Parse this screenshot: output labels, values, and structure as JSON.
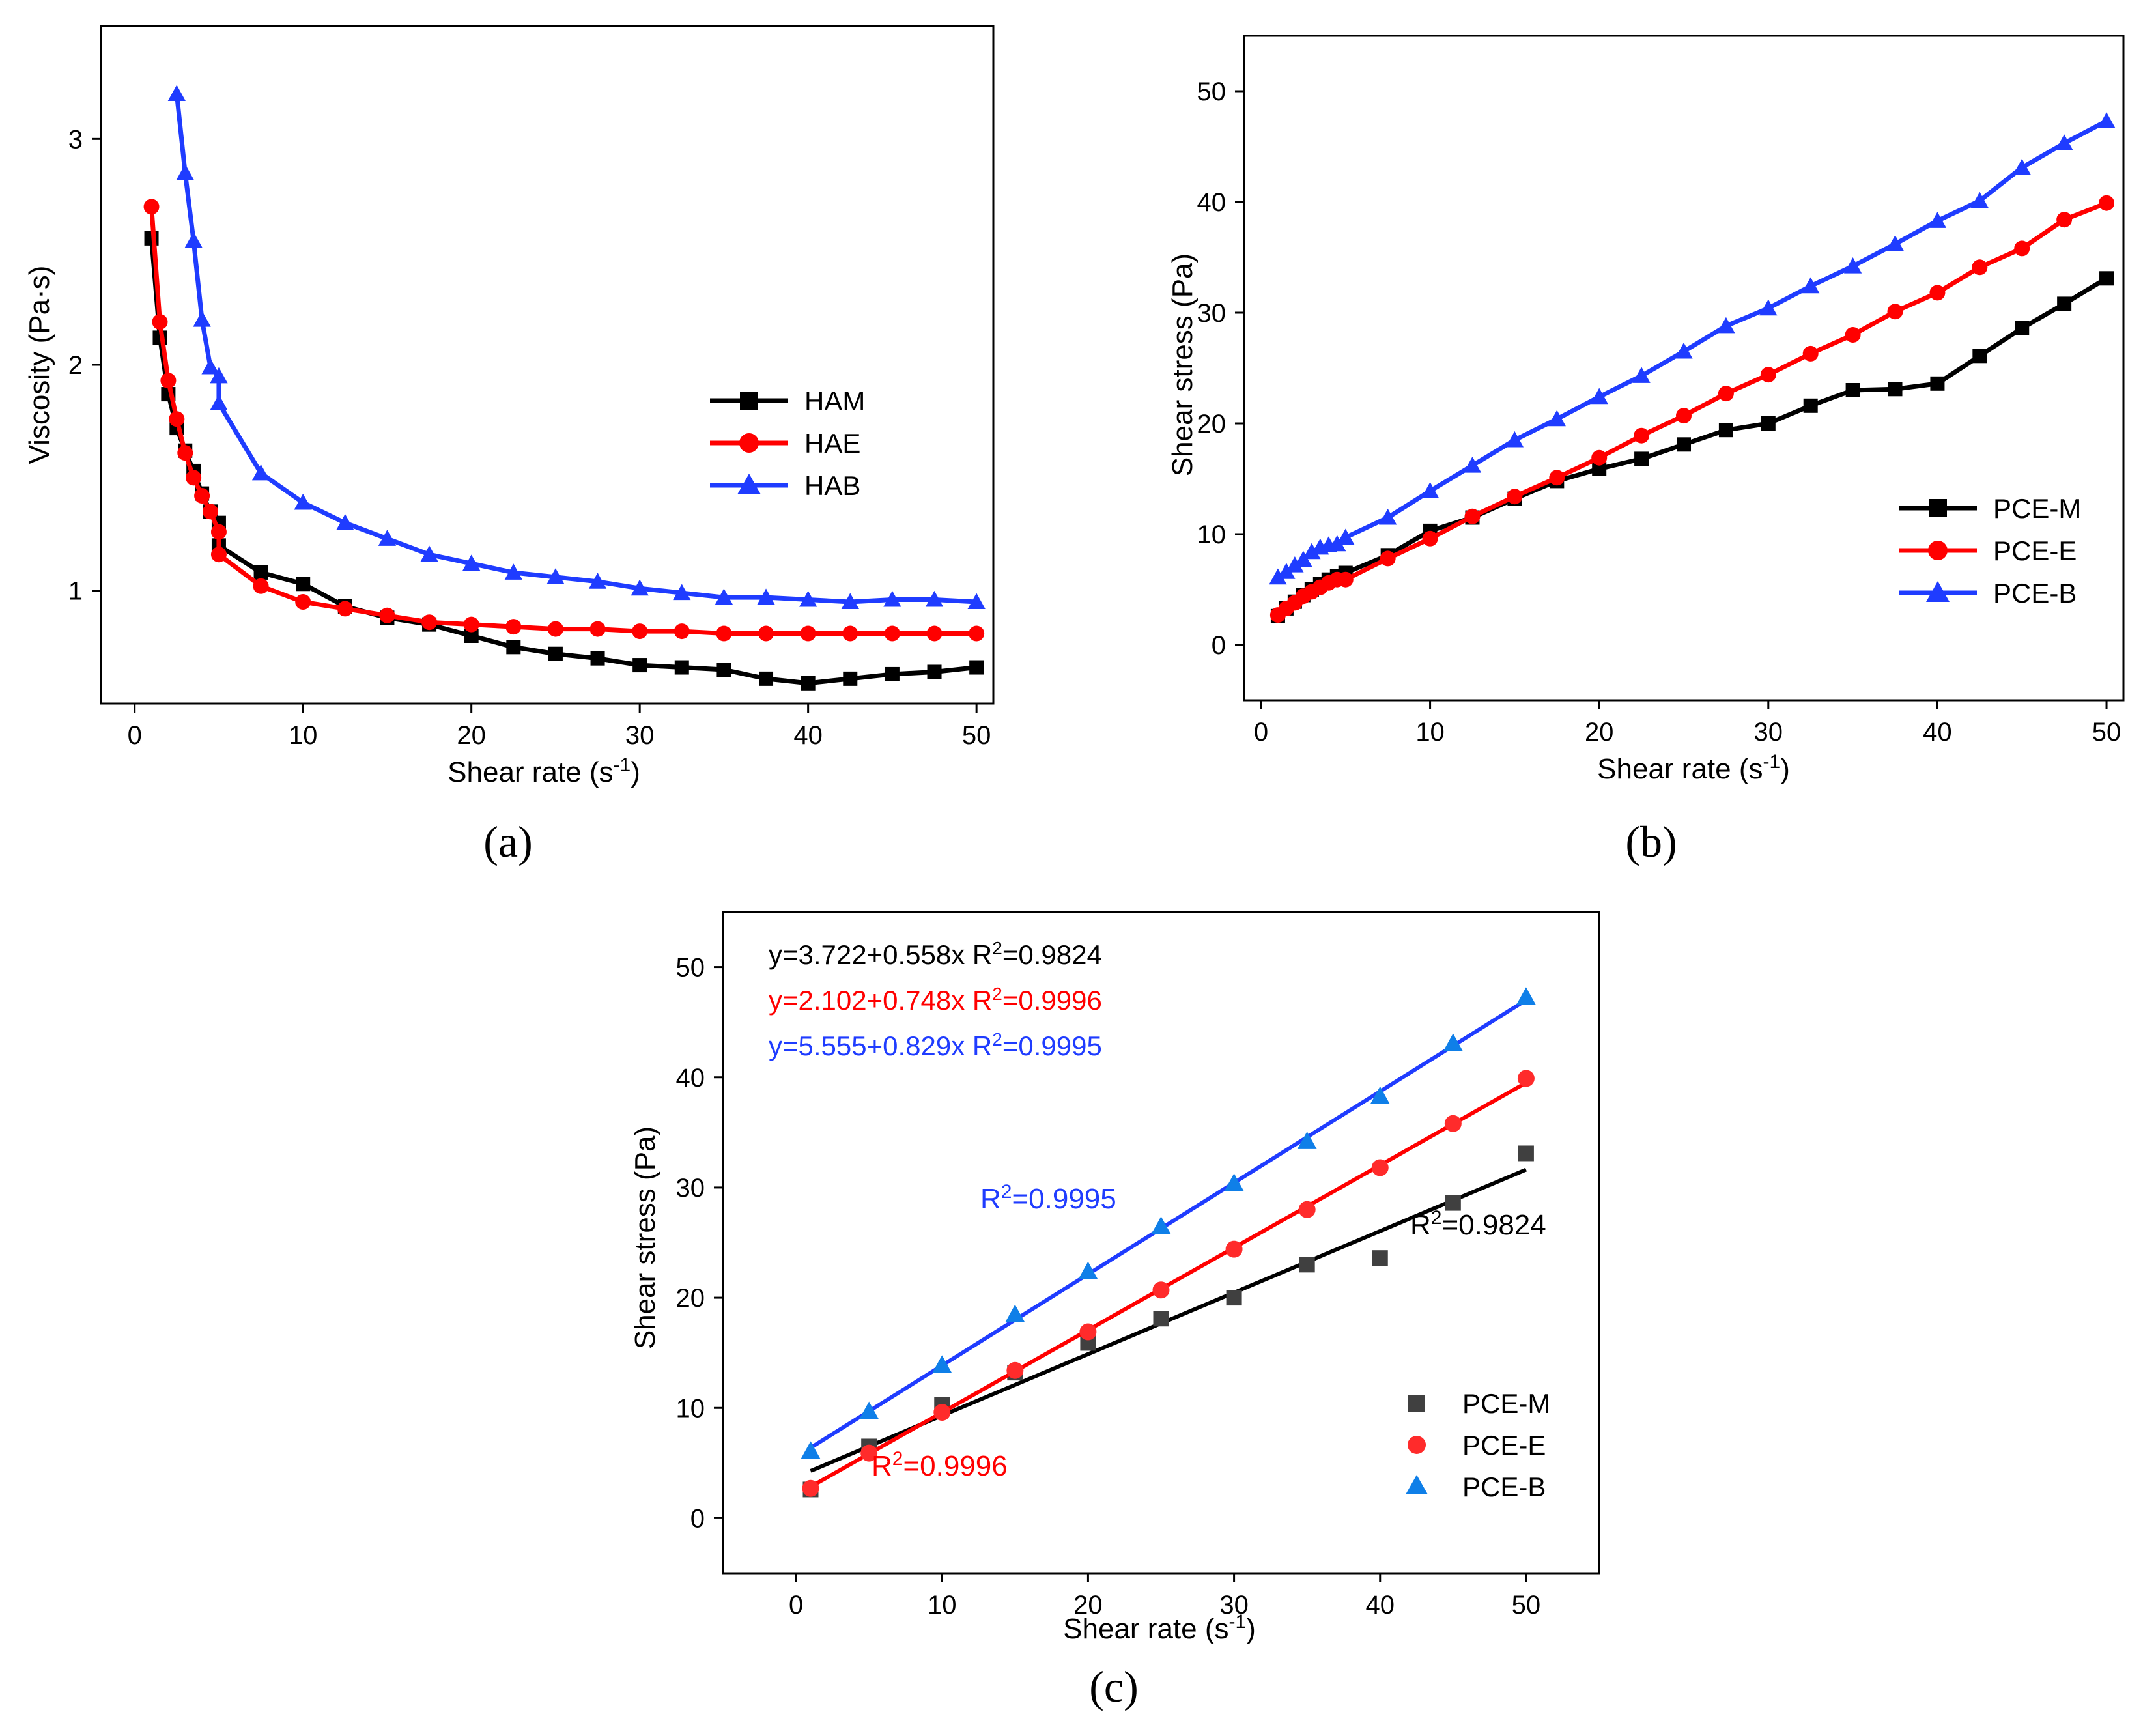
{
  "colors": {
    "black": "#000000",
    "red": "#ff0000",
    "blue": "#1f3cff",
    "gray": "#404040",
    "c_red": "#ff2b2b",
    "c_blue": "#0f7fe8"
  },
  "panels": {
    "a_label": "(a)",
    "b_label": "(b)",
    "c_label": "(c)"
  },
  "chart_data": [
    {
      "id": "a",
      "type": "line",
      "xlabel": "Shear rate (s",
      "xlabel_sup": "-1",
      "xlabel_end": ")",
      "ylabel": "Viscosity (Pa·s)",
      "xlim": [
        -2,
        51
      ],
      "ylim": [
        0.5,
        3.5
      ],
      "xticks": [
        0,
        10,
        20,
        30,
        40,
        50
      ],
      "yticks": [
        1,
        2,
        3
      ],
      "legend_position": "right-middle",
      "series": [
        {
          "name": "HAM",
          "color": "#000000",
          "marker": "square",
          "x": [
            1,
            1.5,
            2,
            2.5,
            3,
            3.5,
            4,
            4.5,
            5,
            5,
            7.5,
            10,
            12.5,
            15,
            17.5,
            20,
            22.5,
            25,
            27.5,
            30,
            32.5,
            35,
            37.5,
            40,
            42.5,
            45,
            47.5,
            50
          ],
          "y": [
            2.56,
            2.12,
            1.87,
            1.72,
            1.62,
            1.53,
            1.43,
            1.35,
            1.3,
            1.2,
            1.08,
            1.03,
            0.93,
            0.88,
            0.85,
            0.8,
            0.75,
            0.72,
            0.7,
            0.67,
            0.66,
            0.65,
            0.61,
            0.59,
            0.61,
            0.63,
            0.64,
            0.66
          ]
        },
        {
          "name": "HAE",
          "color": "#ff0000",
          "marker": "circle",
          "x": [
            1,
            1.5,
            2,
            2.5,
            3,
            3.5,
            4,
            4.5,
            5,
            5,
            7.5,
            10,
            12.5,
            15,
            17.5,
            20,
            22.5,
            25,
            27.5,
            30,
            32.5,
            35,
            37.5,
            40,
            42.5,
            45,
            47.5,
            50
          ],
          "y": [
            2.7,
            2.19,
            1.93,
            1.76,
            1.61,
            1.5,
            1.42,
            1.35,
            1.26,
            1.16,
            1.02,
            0.95,
            0.92,
            0.89,
            0.86,
            0.85,
            0.84,
            0.83,
            0.83,
            0.82,
            0.82,
            0.81,
            0.81,
            0.81,
            0.81,
            0.81,
            0.81,
            0.81
          ]
        },
        {
          "name": "HAB",
          "color": "#1f3cff",
          "marker": "triangle",
          "x": [
            2.5,
            3,
            3.5,
            4,
            4.5,
            5,
            5,
            7.5,
            10,
            12.5,
            15,
            17.5,
            20,
            22.5,
            25,
            27.5,
            30,
            32.5,
            35,
            37.5,
            40,
            42.5,
            45,
            47.5,
            50
          ],
          "y": [
            3.2,
            2.85,
            2.55,
            2.2,
            1.99,
            1.95,
            1.83,
            1.52,
            1.39,
            1.3,
            1.23,
            1.16,
            1.12,
            1.08,
            1.06,
            1.04,
            1.01,
            0.99,
            0.97,
            0.97,
            0.96,
            0.95,
            0.96,
            0.96,
            0.95
          ]
        }
      ]
    },
    {
      "id": "b",
      "type": "line",
      "xlabel": "Shear rate (s",
      "xlabel_sup": "-1",
      "xlabel_end": ")",
      "ylabel": "Shear stress (Pa)",
      "xlim": [
        -1,
        51
      ],
      "ylim": [
        -5,
        55
      ],
      "xticks": [
        0,
        10,
        20,
        30,
        40,
        50
      ],
      "yticks": [
        0,
        10,
        20,
        30,
        40,
        50
      ],
      "legend_position": "bottom-right",
      "series": [
        {
          "name": "PCE-M",
          "color": "#000000",
          "marker": "square",
          "x": [
            1,
            1.5,
            2,
            2.5,
            3,
            3.5,
            4,
            4.5,
            5,
            7.5,
            10,
            12.5,
            15,
            17.5,
            20,
            22.5,
            25,
            27.5,
            30,
            32.5,
            35,
            37.5,
            40,
            42.5,
            45,
            47.5,
            50
          ],
          "y": [
            2.6,
            3.3,
            3.9,
            4.5,
            5.0,
            5.5,
            5.9,
            6.2,
            6.5,
            8.1,
            10.3,
            11.5,
            13.2,
            14.8,
            15.9,
            16.8,
            18.1,
            19.4,
            20.0,
            21.6,
            23.0,
            23.1,
            23.6,
            26.1,
            28.6,
            30.8,
            33.1
          ]
        },
        {
          "name": "PCE-E",
          "color": "#ff0000",
          "marker": "circle",
          "x": [
            1,
            1.5,
            2,
            2.5,
            3,
            3.5,
            4,
            4.5,
            5,
            7.5,
            10,
            12.5,
            15,
            17.5,
            20,
            22.5,
            25,
            27.5,
            30,
            32.5,
            35,
            37.5,
            40,
            42.5,
            45,
            47.5,
            50
          ],
          "y": [
            2.7,
            3.3,
            3.8,
            4.4,
            4.8,
            5.2,
            5.6,
            5.9,
            5.9,
            7.8,
            9.6,
            11.6,
            13.4,
            15.1,
            16.9,
            18.9,
            20.7,
            22.7,
            24.4,
            26.3,
            28.0,
            30.1,
            31.8,
            34.1,
            35.8,
            38.4,
            39.9
          ]
        },
        {
          "name": "PCE-B",
          "color": "#1f3cff",
          "marker": "triangle",
          "x": [
            1,
            1.5,
            2,
            2.5,
            3,
            3.5,
            4,
            4.5,
            5,
            7.5,
            10,
            12.5,
            15,
            17.5,
            20,
            22.5,
            25,
            27.5,
            30,
            32.5,
            35,
            37.5,
            40,
            42.5,
            45,
            47.5,
            50
          ],
          "y": [
            6.1,
            6.6,
            7.2,
            7.7,
            8.4,
            8.8,
            9.0,
            9.1,
            9.7,
            11.5,
            13.9,
            16.2,
            18.5,
            20.4,
            22.4,
            24.3,
            26.5,
            28.8,
            30.4,
            32.4,
            34.2,
            36.2,
            38.3,
            40.1,
            43.1,
            45.3,
            47.3
          ]
        }
      ]
    },
    {
      "id": "c",
      "type": "scatter",
      "xlabel": "Shear rate (s",
      "xlabel_sup": "-1",
      "xlabel_end": ")",
      "ylabel": "Shear stress (Pa)",
      "xlim": [
        -5,
        55
      ],
      "ylim": [
        -5,
        55
      ],
      "xticks": [
        0,
        10,
        20,
        30,
        40,
        50
      ],
      "yticks": [
        0,
        10,
        20,
        30,
        40,
        50
      ],
      "legend_position": "bottom-right",
      "series": [
        {
          "name": "PCE-M",
          "color": "#404040",
          "marker": "square",
          "x": [
            1,
            5,
            10,
            15,
            20,
            25,
            30,
            35,
            40,
            45,
            50
          ],
          "y": [
            2.6,
            6.5,
            10.3,
            13.2,
            15.9,
            18.1,
            20.0,
            23.0,
            23.6,
            28.6,
            33.1
          ],
          "fit": {
            "intercept": 3.722,
            "slope": 0.558,
            "r2_text": "R",
            "r2_sup": "2",
            "r2_value": "=0.9824"
          }
        },
        {
          "name": "PCE-E",
          "color": "#ff2b2b",
          "marker": "circle",
          "x": [
            1,
            5,
            10,
            15,
            20,
            25,
            30,
            35,
            40,
            45,
            50
          ],
          "y": [
            2.7,
            5.9,
            9.6,
            13.4,
            16.9,
            20.7,
            24.4,
            28.0,
            31.8,
            35.8,
            39.9
          ],
          "fit": {
            "intercept": 2.102,
            "slope": 0.748,
            "r2_text": "R",
            "r2_sup": "2",
            "r2_value": "=0.9996"
          }
        },
        {
          "name": "PCE-B",
          "color": "#0f7fe8",
          "marker": "triangle",
          "x": [
            1,
            5,
            10,
            15,
            20,
            25,
            30,
            35,
            40,
            45,
            50
          ],
          "y": [
            6.1,
            9.7,
            13.9,
            18.5,
            22.4,
            26.5,
            30.4,
            34.2,
            38.3,
            43.1,
            47.3
          ],
          "fit": {
            "intercept": 5.555,
            "slope": 0.829,
            "r2_text": "R",
            "r2_sup": "2",
            "r2_value": "=0.9995"
          }
        }
      ],
      "equations": [
        {
          "text": "y=3.722+0.558x R",
          "sup": "2",
          "tail": "=0.9824",
          "color": "#000000"
        },
        {
          "text": "y=2.102+0.748x R",
          "sup": "2",
          "tail": "=0.9996",
          "color": "#ff0000"
        },
        {
          "text": "y=5.555+0.829x R",
          "sup": "2",
          "tail": "=0.9995",
          "color": "#1f3cff"
        }
      ]
    }
  ]
}
